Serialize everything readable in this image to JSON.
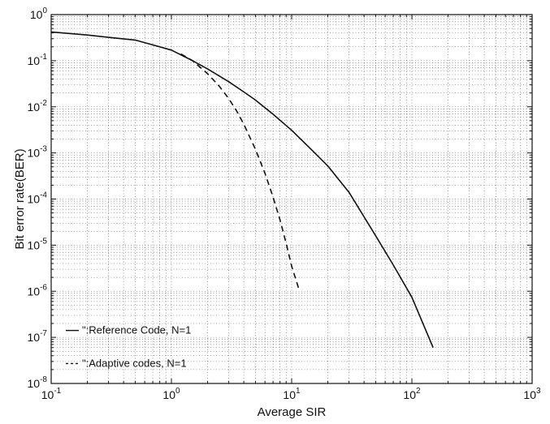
{
  "chart_data": {
    "type": "line",
    "title": "",
    "xlabel": "Average SIR",
    "ylabel": "Bit error rate(BER)",
    "xscale": "log",
    "yscale": "log",
    "xlim": [
      0.1,
      1000
    ],
    "ylim": [
      1e-08,
      1
    ],
    "grid": true,
    "legend_position": "bottom-left",
    "x_tick_labels": [
      {
        "base": "10",
        "exp": "-1",
        "value": 0.1
      },
      {
        "base": "10",
        "exp": "0",
        "value": 1
      },
      {
        "base": "10",
        "exp": "1",
        "value": 10
      },
      {
        "base": "10",
        "exp": "2",
        "value": 100
      },
      {
        "base": "10",
        "exp": "3",
        "value": 1000
      }
    ],
    "y_tick_labels": [
      {
        "base": "10",
        "exp": "0",
        "value": 1
      },
      {
        "base": "10",
        "exp": "-1",
        "value": 0.1
      },
      {
        "base": "10",
        "exp": "-2",
        "value": 0.01
      },
      {
        "base": "10",
        "exp": "-3",
        "value": 0.001
      },
      {
        "base": "10",
        "exp": "-4",
        "value": 0.0001
      },
      {
        "base": "10",
        "exp": "-5",
        "value": 1e-05
      },
      {
        "base": "10",
        "exp": "-6",
        "value": 1e-06
      },
      {
        "base": "10",
        "exp": "-7",
        "value": 1e-07
      },
      {
        "base": "10",
        "exp": "-8",
        "value": 1e-08
      }
    ],
    "legend": [
      {
        "label": "\":Reference Code, N=1",
        "color": "#111111",
        "dash": "solid"
      },
      {
        "label": "\":Adaptive codes, N=1",
        "color": "#111111",
        "dash": "dashed"
      }
    ],
    "series": [
      {
        "label_ref": 0,
        "color": "#111111",
        "dash": "solid",
        "x": [
          0.1,
          0.2,
          0.3,
          0.5,
          0.7,
          1.0,
          1.5,
          2.0,
          3.0,
          4.0,
          5.0,
          7.0,
          10,
          15,
          20,
          30,
          50,
          70,
          100,
          150
        ],
        "y": [
          0.42,
          0.36,
          0.32,
          0.28,
          0.22,
          0.17,
          0.1,
          0.066,
          0.035,
          0.021,
          0.014,
          0.0069,
          0.0031,
          0.0011,
          0.00052,
          0.00014,
          1.6e-05,
          3.7e-06,
          7.4e-07,
          6e-08
        ]
      },
      {
        "label_ref": 1,
        "color": "#111111",
        "dash": "dashed",
        "x": [
          1.2,
          1.5,
          2.0,
          2.5,
          3.0,
          3.5,
          4.0,
          5.0,
          6.0,
          7.0,
          8.0,
          9.0,
          10,
          11.5
        ],
        "y": [
          0.14,
          0.1,
          0.052,
          0.028,
          0.015,
          0.008,
          0.0042,
          0.0012,
          0.00036,
          0.00011,
          3.5e-05,
          1.1e-05,
          3.5e-06,
          1.1e-06
        ]
      }
    ]
  }
}
